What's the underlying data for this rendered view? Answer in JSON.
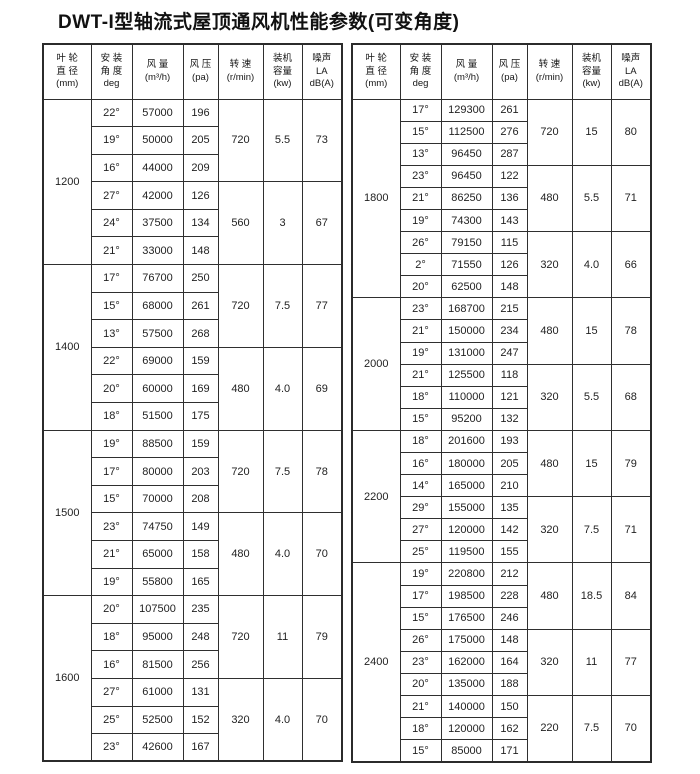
{
  "title": "DWT-I型轴流式屋顶通风机性能参数(可变角度)",
  "column_headers": {
    "diameter": [
      "叶 轮",
      "直 径",
      "(mm)"
    ],
    "angle": [
      "安 装",
      "角 度",
      "deg"
    ],
    "flow": [
      "风 量",
      "(m³/h)"
    ],
    "pressure": [
      "风 压",
      "(pa)"
    ],
    "speed": [
      "转 速",
      "(r/min)"
    ],
    "capacity": [
      "装机",
      "容量",
      "(kw)"
    ],
    "noise": [
      "噪声",
      "LA",
      "dB(A)"
    ]
  },
  "tables": [
    {
      "groups": [
        {
          "diameter": "1200",
          "subgroups": [
            {
              "speed": "720",
              "capacity": "5.5",
              "noise": "73",
              "rows": [
                [
                  "22°",
                  "57000",
                  "196"
                ],
                [
                  "19°",
                  "50000",
                  "205"
                ],
                [
                  "16°",
                  "44000",
                  "209"
                ]
              ]
            },
            {
              "speed": "560",
              "capacity": "3",
              "noise": "67",
              "rows": [
                [
                  "27°",
                  "42000",
                  "126"
                ],
                [
                  "24°",
                  "37500",
                  "134"
                ],
                [
                  "21°",
                  "33000",
                  "148"
                ]
              ]
            }
          ]
        },
        {
          "diameter": "1400",
          "subgroups": [
            {
              "speed": "720",
              "capacity": "7.5",
              "noise": "77",
              "rows": [
                [
                  "17°",
                  "76700",
                  "250"
                ],
                [
                  "15°",
                  "68000",
                  "261"
                ],
                [
                  "13°",
                  "57500",
                  "268"
                ]
              ]
            },
            {
              "speed": "480",
              "capacity": "4.0",
              "noise": "69",
              "rows": [
                [
                  "22°",
                  "69000",
                  "159"
                ],
                [
                  "20°",
                  "60000",
                  "169"
                ],
                [
                  "18°",
                  "51500",
                  "175"
                ]
              ]
            }
          ]
        },
        {
          "diameter": "1500",
          "subgroups": [
            {
              "speed": "720",
              "capacity": "7.5",
              "noise": "78",
              "rows": [
                [
                  "19°",
                  "88500",
                  "159"
                ],
                [
                  "17°",
                  "80000",
                  "203"
                ],
                [
                  "15°",
                  "70000",
                  "208"
                ]
              ]
            },
            {
              "speed": "480",
              "capacity": "4.0",
              "noise": "70",
              "rows": [
                [
                  "23°",
                  "74750",
                  "149"
                ],
                [
                  "21°",
                  "65000",
                  "158"
                ],
                [
                  "19°",
                  "55800",
                  "165"
                ]
              ]
            }
          ]
        },
        {
          "diameter": "1600",
          "subgroups": [
            {
              "speed": "720",
              "capacity": "11",
              "noise": "79",
              "rows": [
                [
                  "20°",
                  "107500",
                  "235"
                ],
                [
                  "18°",
                  "95000",
                  "248"
                ],
                [
                  "16°",
                  "81500",
                  "256"
                ]
              ]
            },
            {
              "speed": "320",
              "capacity": "4.0",
              "noise": "70",
              "rows": [
                [
                  "27°",
                  "61000",
                  "131"
                ],
                [
                  "25°",
                  "52500",
                  "152"
                ],
                [
                  "23°",
                  "42600",
                  "167"
                ]
              ]
            }
          ]
        }
      ]
    },
    {
      "groups": [
        {
          "diameter": "1800",
          "subgroups": [
            {
              "speed": "720",
              "capacity": "15",
              "noise": "80",
              "rows": [
                [
                  "17°",
                  "129300",
                  "261"
                ],
                [
                  "15°",
                  "112500",
                  "276"
                ],
                [
                  "13°",
                  "96450",
                  "287"
                ]
              ]
            },
            {
              "speed": "480",
              "capacity": "5.5",
              "noise": "71",
              "rows": [
                [
                  "23°",
                  "96450",
                  "122"
                ],
                [
                  "21°",
                  "86250",
                  "136"
                ],
                [
                  "19°",
                  "74300",
                  "143"
                ]
              ]
            },
            {
              "speed": "320",
              "capacity": "4.0",
              "noise": "66",
              "rows": [
                [
                  "26°",
                  "79150",
                  "115"
                ],
                [
                  "2°",
                  "71550",
                  "126"
                ],
                [
                  "20°",
                  "62500",
                  "148"
                ]
              ]
            }
          ]
        },
        {
          "diameter": "2000",
          "subgroups": [
            {
              "speed": "480",
              "capacity": "15",
              "noise": "78",
              "rows": [
                [
                  "23°",
                  "168700",
                  "215"
                ],
                [
                  "21°",
                  "150000",
                  "234"
                ],
                [
                  "19°",
                  "131000",
                  "247"
                ]
              ]
            },
            {
              "speed": "320",
              "capacity": "5.5",
              "noise": "68",
              "rows": [
                [
                  "21°",
                  "125500",
                  "118"
                ],
                [
                  "18°",
                  "110000",
                  "121"
                ],
                [
                  "15°",
                  "95200",
                  "132"
                ]
              ]
            }
          ]
        },
        {
          "diameter": "2200",
          "subgroups": [
            {
              "speed": "480",
              "capacity": "15",
              "noise": "79",
              "rows": [
                [
                  "18°",
                  "201600",
                  "193"
                ],
                [
                  "16°",
                  "180000",
                  "205"
                ],
                [
                  "14°",
                  "165000",
                  "210"
                ]
              ]
            },
            {
              "speed": "320",
              "capacity": "7.5",
              "noise": "71",
              "rows": [
                [
                  "29°",
                  "155000",
                  "135"
                ],
                [
                  "27°",
                  "120000",
                  "142"
                ],
                [
                  "25°",
                  "119500",
                  "155"
                ]
              ]
            }
          ]
        },
        {
          "diameter": "2400",
          "subgroups": [
            {
              "speed": "480",
              "capacity": "18.5",
              "noise": "84",
              "rows": [
                [
                  "19°",
                  "220800",
                  "212"
                ],
                [
                  "17°",
                  "198500",
                  "228"
                ],
                [
                  "15°",
                  "176500",
                  "246"
                ]
              ]
            },
            {
              "speed": "320",
              "capacity": "11",
              "noise": "77",
              "rows": [
                [
                  "26°",
                  "175000",
                  "148"
                ],
                [
                  "23°",
                  "162000",
                  "164"
                ],
                [
                  "20°",
                  "135000",
                  "188"
                ]
              ]
            },
            {
              "speed": "220",
              "capacity": "7.5",
              "noise": "70",
              "rows": [
                [
                  "21°",
                  "140000",
                  "150"
                ],
                [
                  "18°",
                  "120000",
                  "162"
                ],
                [
                  "15°",
                  "85000",
                  "171"
                ]
              ]
            }
          ]
        }
      ]
    }
  ]
}
